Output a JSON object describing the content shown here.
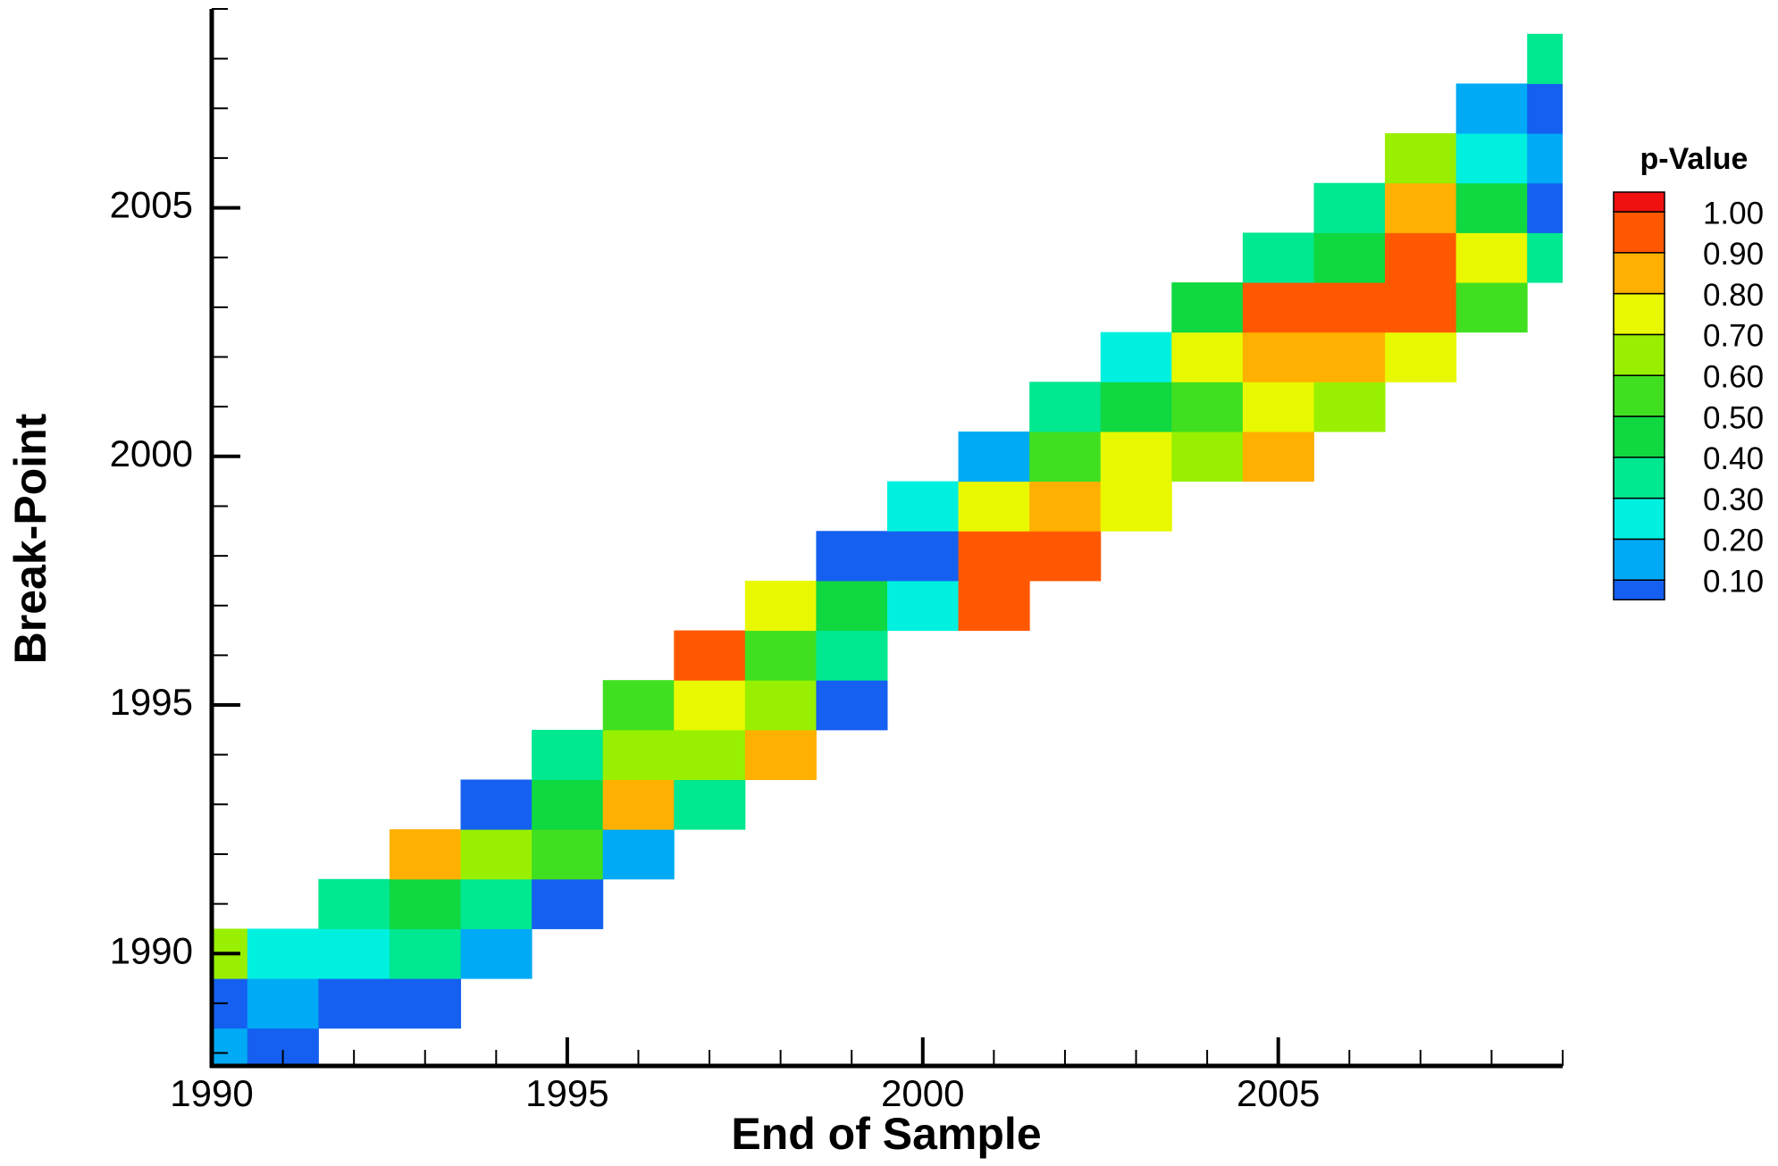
{
  "chart_data": {
    "type": "heatmap",
    "x_label": "End of Sample",
    "y_label": "Break-Point",
    "x": [
      1990,
      1991,
      1992,
      1993,
      1994,
      1995,
      1996,
      1997,
      1998,
      1999,
      2000,
      2001,
      2002,
      2003,
      2004,
      2005,
      2006,
      2007,
      2008,
      2009
    ],
    "y": [
      1988,
      1989,
      1990,
      1991,
      1992,
      1993,
      1994,
      1995,
      1996,
      1997,
      1998,
      1999,
      2000,
      2001,
      2002,
      2003,
      2004,
      2005,
      2006,
      2007,
      2008,
      2009
    ],
    "z": [
      [
        0.15,
        0.05,
        null,
        null,
        null,
        null,
        null,
        null,
        null,
        null,
        null,
        null,
        null,
        null,
        null,
        null,
        null,
        null,
        null,
        null
      ],
      [
        0.08,
        0.12,
        0.05,
        0.08,
        null,
        null,
        null,
        null,
        null,
        null,
        null,
        null,
        null,
        null,
        null,
        null,
        null,
        null,
        null,
        null
      ],
      [
        0.6,
        0.2,
        0.25,
        0.3,
        0.15,
        null,
        null,
        null,
        null,
        null,
        null,
        null,
        null,
        null,
        null,
        null,
        null,
        null,
        null,
        null
      ],
      [
        null,
        null,
        0.3,
        0.45,
        0.35,
        0.05,
        null,
        null,
        null,
        null,
        null,
        null,
        null,
        null,
        null,
        null,
        null,
        null,
        null,
        null
      ],
      [
        null,
        null,
        null,
        0.85,
        0.6,
        0.55,
        0.12,
        null,
        null,
        null,
        null,
        null,
        null,
        null,
        null,
        null,
        null,
        null,
        null,
        null
      ],
      [
        null,
        null,
        null,
        null,
        0.05,
        0.45,
        0.8,
        0.35,
        null,
        null,
        null,
        null,
        null,
        null,
        null,
        null,
        null,
        null,
        null,
        null
      ],
      [
        null,
        null,
        null,
        null,
        null,
        0.3,
        0.65,
        0.6,
        0.85,
        null,
        null,
        null,
        null,
        null,
        null,
        null,
        null,
        null,
        null,
        null
      ],
      [
        null,
        null,
        null,
        null,
        null,
        null,
        0.55,
        0.75,
        0.65,
        0.08,
        null,
        null,
        null,
        null,
        null,
        null,
        null,
        null,
        null,
        null
      ],
      [
        null,
        null,
        null,
        null,
        null,
        null,
        null,
        0.92,
        0.5,
        0.35,
        null,
        null,
        null,
        null,
        null,
        null,
        null,
        null,
        null,
        null
      ],
      [
        null,
        null,
        null,
        null,
        null,
        null,
        null,
        null,
        0.75,
        0.45,
        0.25,
        0.92,
        null,
        null,
        null,
        null,
        null,
        null,
        null,
        null
      ],
      [
        null,
        null,
        null,
        null,
        null,
        null,
        null,
        null,
        null,
        0.08,
        0.05,
        0.95,
        0.92,
        null,
        null,
        null,
        null,
        null,
        null,
        null
      ],
      [
        null,
        null,
        null,
        null,
        null,
        null,
        null,
        null,
        null,
        null,
        0.2,
        0.75,
        0.85,
        0.7,
        null,
        null,
        null,
        null,
        null,
        null
      ],
      [
        null,
        null,
        null,
        null,
        null,
        null,
        null,
        null,
        null,
        null,
        null,
        0.15,
        0.5,
        0.75,
        0.65,
        0.8,
        null,
        null,
        null,
        null
      ],
      [
        null,
        null,
        null,
        null,
        null,
        null,
        null,
        null,
        null,
        null,
        null,
        null,
        0.35,
        0.45,
        0.55,
        0.78,
        0.65,
        null,
        null,
        null
      ],
      [
        null,
        null,
        null,
        null,
        null,
        null,
        null,
        null,
        null,
        null,
        null,
        null,
        null,
        0.25,
        0.7,
        0.85,
        0.85,
        0.75,
        null,
        null
      ],
      [
        null,
        null,
        null,
        null,
        null,
        null,
        null,
        null,
        null,
        null,
        null,
        null,
        null,
        null,
        0.45,
        0.92,
        0.95,
        0.95,
        0.55,
        null
      ],
      [
        null,
        null,
        null,
        null,
        null,
        null,
        null,
        null,
        null,
        null,
        null,
        null,
        null,
        null,
        null,
        0.35,
        0.4,
        0.92,
        0.7,
        0.3
      ],
      [
        null,
        null,
        null,
        null,
        null,
        null,
        null,
        null,
        null,
        null,
        null,
        null,
        null,
        null,
        null,
        null,
        0.3,
        0.85,
        0.45,
        0.05
      ],
      [
        null,
        null,
        null,
        null,
        null,
        null,
        null,
        null,
        null,
        null,
        null,
        null,
        null,
        null,
        null,
        null,
        null,
        0.6,
        0.2,
        0.12
      ],
      [
        null,
        null,
        null,
        null,
        null,
        null,
        null,
        null,
        null,
        null,
        null,
        null,
        null,
        null,
        null,
        null,
        null,
        null,
        0.15,
        0.05
      ],
      [
        null,
        null,
        null,
        null,
        null,
        null,
        null,
        null,
        null,
        null,
        null,
        null,
        null,
        null,
        null,
        null,
        null,
        null,
        null,
        0.35
      ],
      [
        null,
        null,
        null,
        null,
        null,
        null,
        null,
        null,
        null,
        null,
        null,
        null,
        null,
        null,
        null,
        null,
        null,
        null,
        null,
        null
      ]
    ],
    "xlim": [
      1990,
      2009
    ],
    "ylim": [
      1987.74,
      2009
    ],
    "xticks": [
      1990,
      1995,
      2000,
      2005
    ],
    "yticks": [
      1990,
      1995,
      2000,
      2005
    ],
    "xminorticks": [
      1991,
      1992,
      1993,
      1994,
      1996,
      1997,
      1998,
      1999,
      2001,
      2002,
      2003,
      2004,
      2006,
      2007,
      2008,
      2009
    ],
    "yminorticks": [
      1988,
      1989,
      1991,
      1992,
      1993,
      1994,
      1996,
      1997,
      1998,
      1999,
      2001,
      2002,
      2003,
      2004,
      2006,
      2007,
      2008,
      2009
    ],
    "legend": {
      "title": "p-Value",
      "levels": [
        {
          "value": 0.1,
          "label": "0.10"
        },
        {
          "value": 0.2,
          "label": "0.20"
        },
        {
          "value": 0.3,
          "label": "0.30"
        },
        {
          "value": 0.4,
          "label": "0.40"
        },
        {
          "value": 0.5,
          "label": "0.50"
        },
        {
          "value": 0.6,
          "label": "0.60"
        },
        {
          "value": 0.7,
          "label": "0.70"
        },
        {
          "value": 0.8,
          "label": "0.80"
        },
        {
          "value": 0.9,
          "label": "0.90"
        },
        {
          "value": 1,
          "label": "1.00"
        }
      ],
      "colors": [
        "#1560f0",
        "#00aaf5",
        "#00f0e0",
        "#00e890",
        "#10d840",
        "#40e020",
        "#98f000",
        "#e8f800",
        "#ffb000",
        "#ff5800",
        "#f01010"
      ]
    }
  }
}
